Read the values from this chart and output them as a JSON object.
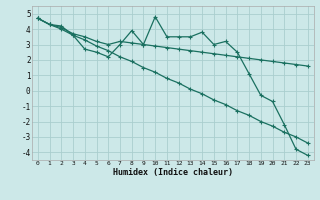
{
  "xlabel": "Humidex (Indice chaleur)",
  "background_color": "#cce8e8",
  "grid_color": "#aacece",
  "line_color": "#1a7060",
  "xlim": [
    -0.5,
    23.5
  ],
  "ylim": [
    -4.5,
    5.5
  ],
  "xticks": [
    0,
    1,
    2,
    3,
    4,
    5,
    6,
    7,
    8,
    9,
    10,
    11,
    12,
    13,
    14,
    15,
    16,
    17,
    18,
    19,
    20,
    21,
    22,
    23
  ],
  "yticks": [
    -4,
    -3,
    -2,
    -1,
    0,
    1,
    2,
    3,
    4,
    5
  ],
  "series": [
    [
      4.7,
      4.3,
      4.2,
      3.6,
      2.7,
      2.5,
      2.2,
      3.0,
      3.9,
      3.0,
      4.8,
      3.5,
      3.5,
      3.5,
      3.8,
      3.0,
      3.2,
      2.5,
      1.1,
      -0.3,
      -0.7,
      -2.2,
      -3.8,
      -4.2
    ],
    [
      4.7,
      4.3,
      4.1,
      3.7,
      3.5,
      3.2,
      3.0,
      3.2,
      3.1,
      3.0,
      2.9,
      2.8,
      2.7,
      2.6,
      2.5,
      2.4,
      2.3,
      2.2,
      2.1,
      2.0,
      1.9,
      1.8,
      1.7,
      1.6
    ],
    [
      4.7,
      4.3,
      4.0,
      3.6,
      3.3,
      2.9,
      2.6,
      2.2,
      1.9,
      1.5,
      1.2,
      0.8,
      0.5,
      0.1,
      -0.2,
      -0.6,
      -0.9,
      -1.3,
      -1.6,
      -2.0,
      -2.3,
      -2.7,
      -3.0,
      -3.4
    ]
  ]
}
